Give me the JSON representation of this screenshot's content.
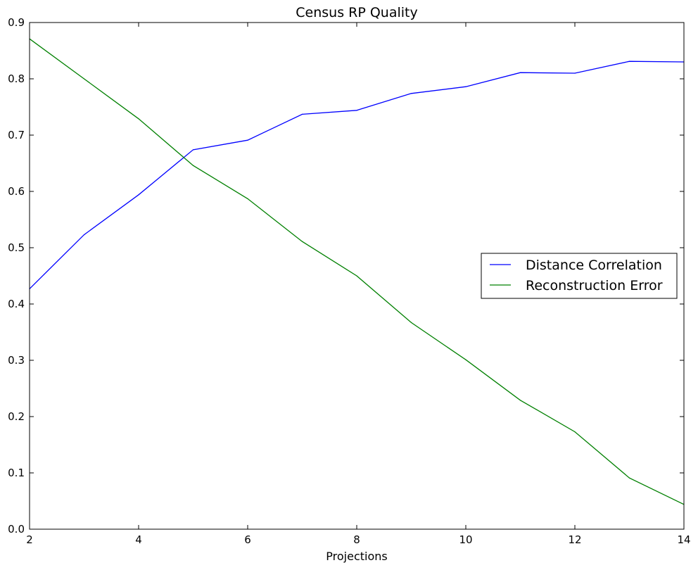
{
  "chart_data": {
    "type": "line",
    "title": "Census RP Quality",
    "xlabel": "Projections",
    "ylabel": "",
    "xlim": [
      2,
      14
    ],
    "ylim": [
      0,
      0.9
    ],
    "xticks": [
      2,
      4,
      6,
      8,
      10,
      12,
      14
    ],
    "xtick_labels": [
      "2",
      "4",
      "6",
      "8",
      "10",
      "12",
      "14"
    ],
    "yticks": [
      0,
      0.1,
      0.2,
      0.3,
      0.4,
      0.5,
      0.6,
      0.7,
      0.8,
      0.9
    ],
    "ytick_labels": [
      "0.0",
      "0.1",
      "0.2",
      "0.3",
      "0.4",
      "0.5",
      "0.6",
      "0.7",
      "0.8",
      "0.9"
    ],
    "grid": false,
    "legend_position": "center-right",
    "x": [
      2,
      3,
      4,
      5,
      6,
      7,
      8,
      9,
      10,
      11,
      12,
      13,
      14
    ],
    "series": [
      {
        "name": "Distance Correlation",
        "color": "#0000ff",
        "values": [
          0.427,
          0.523,
          0.594,
          0.674,
          0.691,
          0.737,
          0.744,
          0.774,
          0.786,
          0.811,
          0.81,
          0.831,
          0.83
        ]
      },
      {
        "name": "Reconstruction Error",
        "color": "#008000",
        "values": [
          0.871,
          0.8,
          0.729,
          0.646,
          0.587,
          0.511,
          0.45,
          0.367,
          0.301,
          0.229,
          0.173,
          0.091,
          0.044
        ]
      }
    ]
  }
}
